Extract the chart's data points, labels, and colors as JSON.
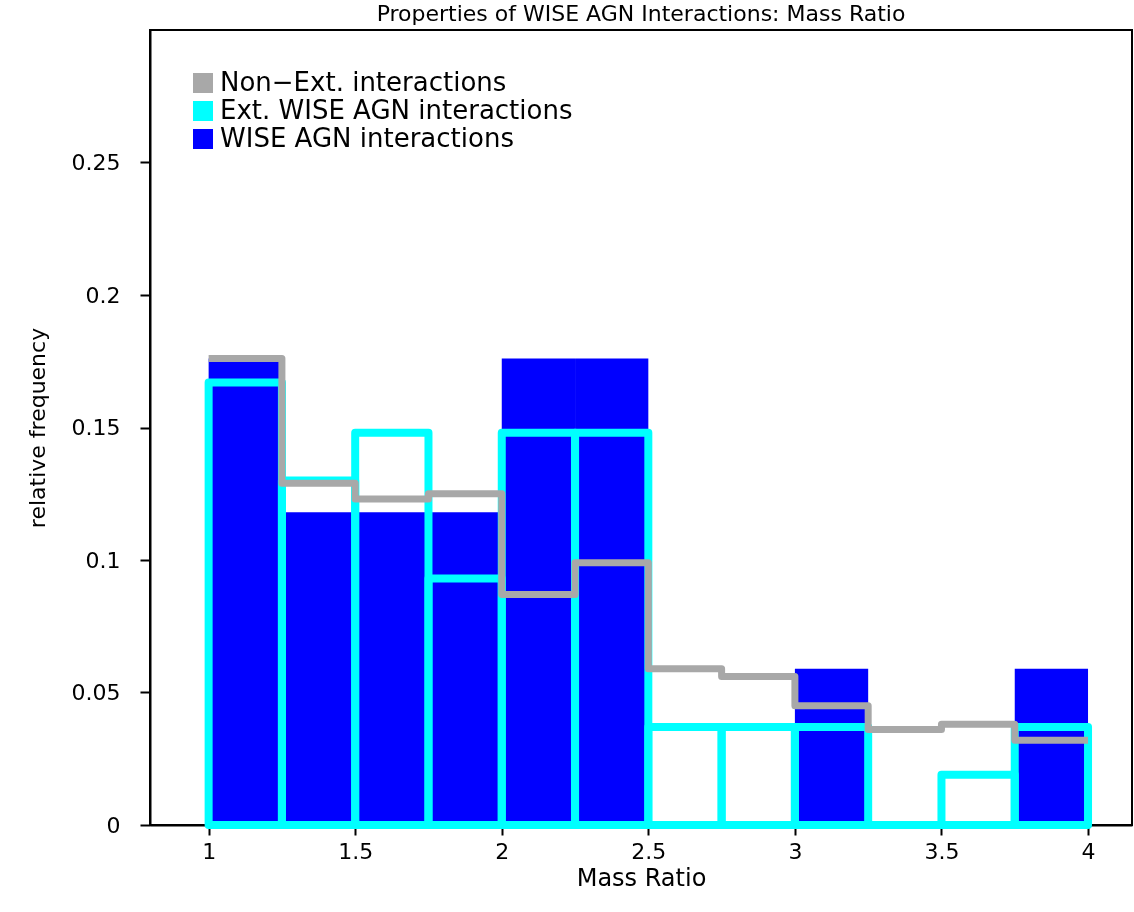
{
  "chart_data": {
    "type": "histogram",
    "title": "Properties of WISE AGN Interactions: Mass Ratio",
    "xlabel": "Mass Ratio",
    "ylabel": "relative frequency",
    "bins": [
      1,
      1.25,
      1.5,
      1.75,
      2,
      2.25,
      2.5,
      2.75,
      3,
      3.25,
      3.5,
      3.75,
      4
    ],
    "series": [
      {
        "name": "Non−Ext. interactions",
        "type": "step",
        "color": "#a8a8a8",
        "x": [
          1,
          1.25,
          1.5,
          1.75,
          2,
          2.25,
          2.5,
          2.75,
          3,
          3.25,
          3.5,
          3.75,
          4
        ],
        "values": [
          0.176,
          0.129,
          0.123,
          0.125,
          0.087,
          0.099,
          0.059,
          0.056,
          0.045,
          0.036,
          0.038,
          0.032,
          0.032
        ]
      },
      {
        "name": "Ext. WISE AGN interactions",
        "color": "#00ffff",
        "values": [
          0.167,
          0.13,
          0.148,
          0.093,
          0.148,
          0.148,
          0.037,
          0.037,
          0.037,
          0,
          0.019,
          0.037
        ]
      },
      {
        "name": "WISE AGN interactions",
        "color": "#0000ff",
        "values": [
          0.176,
          0.118,
          0.118,
          0.118,
          0.176,
          0.176,
          0,
          0,
          0.059,
          0,
          0,
          0.059
        ]
      }
    ],
    "xlim": [
      0.8,
      4.15
    ],
    "xticks": [
      1,
      1.5,
      2,
      2.5,
      3,
      3.5,
      4
    ],
    "ylim": [
      0,
      0.3
    ],
    "yticks": [
      0,
      0.05,
      0.1,
      0.15,
      0.2,
      0.25
    ],
    "legend": "top left",
    "grid": false
  }
}
